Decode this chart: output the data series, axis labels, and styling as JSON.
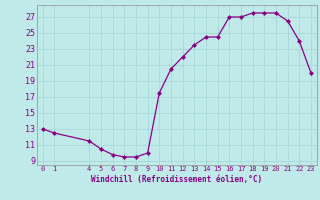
{
  "x": [
    0,
    1,
    4,
    5,
    6,
    7,
    8,
    9,
    10,
    11,
    12,
    13,
    14,
    15,
    16,
    17,
    18,
    19,
    20,
    21,
    22,
    23
  ],
  "y": [
    13,
    12.5,
    11.5,
    10.5,
    9.8,
    9.5,
    9.5,
    10,
    17.5,
    20.5,
    22,
    23.5,
    24.5,
    24.5,
    27,
    27,
    27.5,
    27.5,
    27.5,
    26.5,
    24,
    20
  ],
  "xticks": [
    0,
    1,
    4,
    5,
    6,
    7,
    8,
    9,
    10,
    11,
    12,
    13,
    14,
    15,
    16,
    17,
    18,
    19,
    20,
    21,
    22,
    23
  ],
  "yticks": [
    9,
    11,
    13,
    15,
    17,
    19,
    21,
    23,
    25,
    27
  ],
  "ylim": [
    8.5,
    28.5
  ],
  "xlim": [
    -0.5,
    23.5
  ],
  "xlabel": "Windchill (Refroidissement éolien,°C)",
  "line_color": "#880088",
  "marker_color": "#880088",
  "bg_color": "#c0eaea",
  "grid_color": "#a8d8d8",
  "tick_color": "#880088",
  "label_color": "#880088"
}
